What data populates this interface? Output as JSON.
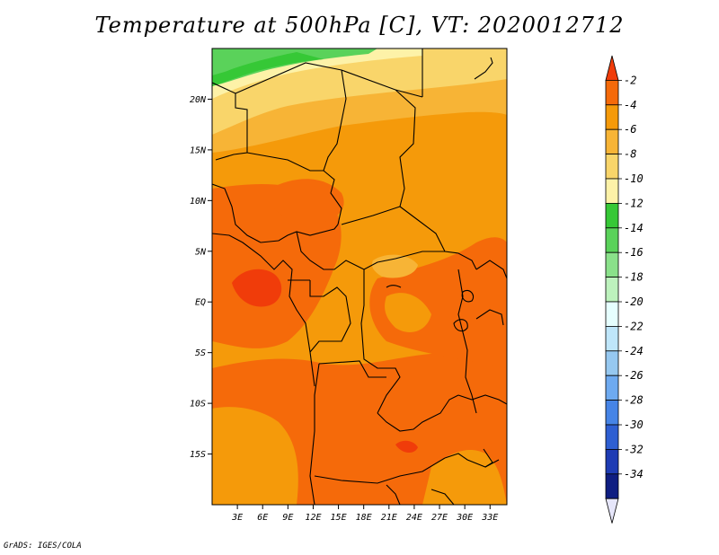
{
  "title": "Temperature at 500hPa [C], VT: 2020012712",
  "credit": "GrADS: IGES/COLA",
  "axes": {
    "lat_labels": [
      "20N",
      "15N",
      "10N",
      "5N",
      "EQ",
      "5S",
      "10S",
      "15S"
    ],
    "lat_values": [
      20,
      15,
      10,
      5,
      0,
      -5,
      -10,
      -15
    ],
    "lon_labels": [
      "3E",
      "6E",
      "9E",
      "12E",
      "15E",
      "18E",
      "21E",
      "24E",
      "27E",
      "30E",
      "33E"
    ],
    "lon_values": [
      3,
      6,
      9,
      12,
      15,
      18,
      21,
      24,
      27,
      30,
      33
    ],
    "lon_range": [
      0,
      35
    ],
    "lat_range": [
      -20,
      25
    ]
  },
  "colorbar": {
    "labels": [
      "-2",
      "-4",
      "-6",
      "-8",
      "-10",
      "-12",
      "-14",
      "-16",
      "-18",
      "-20",
      "-22",
      "-24",
      "-26",
      "-28",
      "-30",
      "-32",
      "-34"
    ],
    "colors": [
      "#f03c0a",
      "#f56a0a",
      "#f59a0a",
      "#f7b436",
      "#f9d56a",
      "#fdf2a8",
      "#36c836",
      "#5ad25a",
      "#8ae18a",
      "#bdf2bd",
      "#e6ffff",
      "#bfe6fa",
      "#96c8f0",
      "#6eaaf0",
      "#4684e6",
      "#2e5fd2",
      "#1e3cb4",
      "#0f1e82",
      "#e6e6fa"
    ]
  },
  "chart_data": {
    "type": "heatmap",
    "title": "Temperature at 500hPa [C], VT: 2020012712",
    "variable": "Temperature",
    "level": "500hPa",
    "units": "C",
    "valid_time": "2020012712",
    "x_ticks": [
      "3E",
      "6E",
      "9E",
      "12E",
      "15E",
      "18E",
      "21E",
      "24E",
      "27E",
      "30E",
      "33E"
    ],
    "y_ticks": [
      "20N",
      "15N",
      "10N",
      "5N",
      "EQ",
      "5S",
      "10S",
      "15S"
    ],
    "legend_levels": [
      -2,
      -4,
      -6,
      -8,
      -10,
      -12,
      -14,
      -16,
      -18,
      -20,
      -22,
      -24,
      -26,
      -28,
      -30,
      -32,
      -34
    ],
    "regions": [
      {
        "name": "north-green",
        "range": "-14 to -12"
      },
      {
        "name": "north-pale",
        "range": "-10 to -8"
      },
      {
        "name": "central",
        "range": "-6 to -4"
      },
      {
        "name": "equatorial-west",
        "range": "-4 to -2"
      }
    ]
  }
}
